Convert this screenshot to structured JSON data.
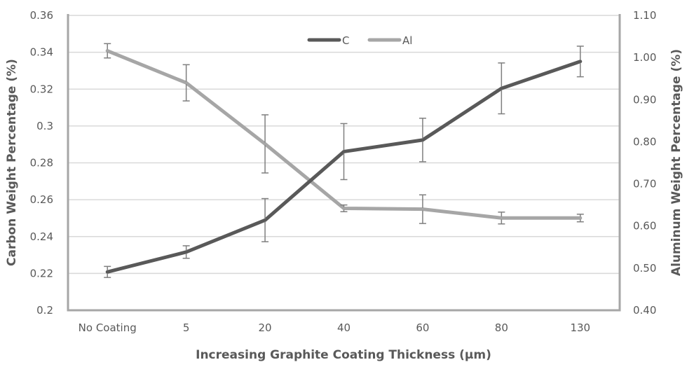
{
  "chart_data": {
    "type": "line",
    "title": "",
    "xlabel": "Increasing Graphite Coating Thickness (µm)",
    "ylabel": "Carbon Weight Percentage (%)",
    "y2label": "Aluminum Weight Percentage (%)",
    "categories": [
      "No Coating",
      "5",
      "20",
      "40",
      "60",
      "80",
      "130"
    ],
    "ylim": [
      0.2,
      0.36
    ],
    "yticks": [
      "0.2",
      "0.22",
      "0.24",
      "0.26",
      "0.28",
      "0.3",
      "0.32",
      "0.34",
      "0.36"
    ],
    "y2lim": [
      0.4,
      1.1
    ],
    "y2ticks": [
      "0.40",
      "0.50",
      "0.60",
      "0.70",
      "0.80",
      "0.90",
      "1.00",
      "1.10"
    ],
    "grid": true,
    "legend_position": "top-center",
    "series": [
      {
        "name": "C",
        "axis": "left",
        "color": "#595959",
        "values": [
          0.2208,
          0.2316,
          0.2489,
          0.2861,
          0.2924,
          0.3204,
          0.335
        ],
        "errors": [
          0.003,
          0.0034,
          0.0117,
          0.0152,
          0.0118,
          0.0138,
          0.0083
        ]
      },
      {
        "name": "Al",
        "axis": "right",
        "color": "#a6a6a6",
        "values": [
          1.016,
          0.94,
          0.795,
          0.642,
          0.64,
          0.619,
          0.619
        ],
        "errors": [
          0.017,
          0.043,
          0.069,
          0.008,
          0.034,
          0.014,
          0.009
        ]
      }
    ],
    "colors": {
      "grid": "#d9d9d9",
      "axis": "#a6a6a6",
      "error_bar": "#7f7f7f",
      "text": "#595959"
    }
  }
}
